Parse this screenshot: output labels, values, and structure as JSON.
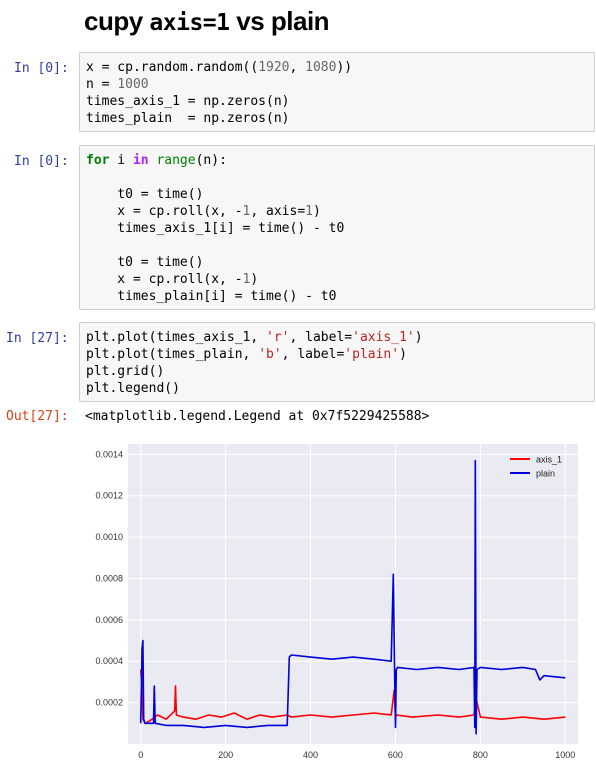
{
  "title": {
    "prefix": "cupy ",
    "code": "axis=1",
    "suffix": " vs plain"
  },
  "cells": [
    {
      "prompt": "In [0]:"
    },
    {
      "prompt": "In [0]:"
    },
    {
      "prompt": "In [27]:"
    }
  ],
  "output": {
    "prompt": "Out[27]:",
    "text": "<matplotlib.legend.Legend at 0x7f5229425588>"
  },
  "colors": {
    "axis_1": "#ff0000",
    "plain": "#0000dd",
    "plot_bg": "#eaeaf2",
    "grid": "#ffffff"
  },
  "chart_data": {
    "type": "line",
    "xlim": [
      -30,
      1030
    ],
    "ylim": [
      0,
      0.00145
    ],
    "x_ticks": [
      0,
      200,
      400,
      600,
      800,
      1000
    ],
    "y_ticks": [
      0.0002,
      0.0004,
      0.0006,
      0.0008,
      0.001,
      0.0012,
      0.0014
    ],
    "x_tick_labels": [
      "0",
      "200",
      "400",
      "600",
      "800",
      "1000"
    ],
    "y_tick_labels": [
      "0.0002",
      "0.0004",
      "0.0006",
      "0.0008",
      "0.0010",
      "0.0012",
      "0.0014"
    ],
    "grid": true,
    "legend_position": "top-right",
    "series": [
      {
        "name": "axis_1",
        "x": [
          0,
          2,
          5,
          10,
          20,
          40,
          60,
          80,
          82,
          84,
          100,
          130,
          160,
          190,
          220,
          250,
          280,
          310,
          345,
          355,
          400,
          450,
          500,
          550,
          590,
          597,
          600,
          603,
          640,
          700,
          750,
          785,
          790,
          800,
          850,
          900,
          950,
          1000
        ],
        "y": [
          0.00036,
          0.0003,
          0.00012,
          0.0001,
          0.00011,
          0.00014,
          0.00012,
          0.00016,
          0.00028,
          0.00014,
          0.00013,
          0.00012,
          0.00014,
          0.00013,
          0.00015,
          0.00012,
          0.00014,
          0.00013,
          0.00014,
          0.00013,
          0.00014,
          0.00013,
          0.00014,
          0.00015,
          0.00014,
          0.00026,
          0.00013,
          0.00014,
          0.00013,
          0.00014,
          0.00013,
          0.00014,
          0.00022,
          0.00013,
          0.00012,
          0.00013,
          0.00012,
          0.00013
        ]
      },
      {
        "name": "plain",
        "x": [
          0,
          2,
          3,
          5,
          7,
          10,
          30,
          32,
          34,
          60,
          100,
          150,
          200,
          250,
          300,
          345,
          350,
          355,
          400,
          450,
          500,
          550,
          590,
          595,
          598,
          600,
          602,
          605,
          650,
          700,
          750,
          785,
          787,
          788,
          790,
          792,
          800,
          850,
          900,
          930,
          940,
          950,
          1000
        ],
        "y": [
          0.0001,
          0.00032,
          0.00046,
          0.0005,
          0.00012,
          0.0001,
          0.0001,
          0.00028,
          0.0001,
          9e-05,
          9e-05,
          8e-05,
          9e-05,
          8e-05,
          9e-05,
          9e-05,
          0.00042,
          0.00043,
          0.00042,
          0.00041,
          0.00042,
          0.00041,
          0.0004,
          0.00082,
          0.00035,
          8e-05,
          0.00036,
          0.00037,
          0.00036,
          0.00037,
          0.00036,
          0.00037,
          8e-05,
          0.00137,
          5e-05,
          0.00036,
          0.00037,
          0.00036,
          0.00037,
          0.00036,
          0.00031,
          0.00033,
          0.00032
        ]
      }
    ]
  }
}
